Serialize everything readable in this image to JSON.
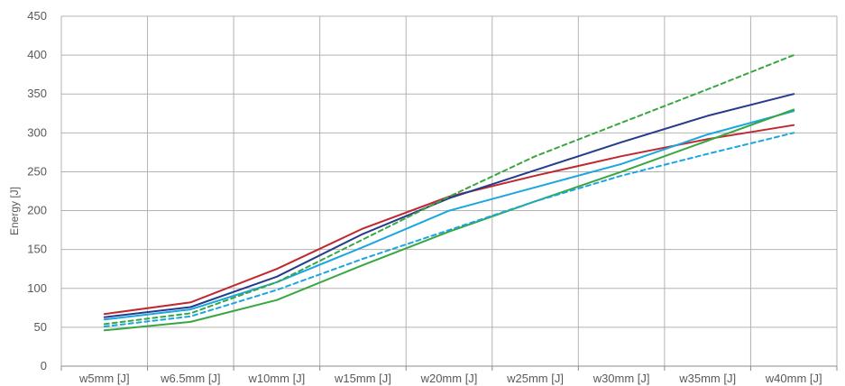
{
  "chart_data": {
    "type": "line",
    "ylabel": "Energy [J]",
    "xlabel": "",
    "title": "",
    "ylim": [
      0,
      450
    ],
    "ytick_step": 50,
    "grid": true,
    "legend": "none",
    "categories": [
      "w5mm [J]",
      "w6.5mm [J]",
      "w10mm [J]",
      "w15mm [J]",
      "w20mm [J]",
      "w25mm [J]",
      "w30mm [J]",
      "w35mm [J]",
      "w40mm [J]"
    ],
    "series": [
      {
        "color": "#c0282f",
        "dash": "solid",
        "values": [
          67,
          82,
          125,
          177,
          218,
          245,
          270,
          292,
          310
        ]
      },
      {
        "color": "#253c8c",
        "dash": "solid",
        "values": [
          63,
          76,
          115,
          170,
          216,
          252,
          288,
          322,
          350
        ]
      },
      {
        "color": "#1aa6e0",
        "dash": "solid",
        "values": [
          60,
          73,
          108,
          153,
          200,
          230,
          260,
          298,
          328
        ]
      },
      {
        "color": "#3aa642",
        "dash": "solid",
        "values": [
          46,
          57,
          85,
          130,
          173,
          212,
          250,
          290,
          330
        ]
      },
      {
        "color": "#3aa642",
        "dash": "dashed",
        "values": [
          54,
          68,
          108,
          163,
          218,
          270,
          313,
          356,
          400
        ]
      },
      {
        "color": "#1aa6e0",
        "dash": "dashed",
        "values": [
          51,
          64,
          98,
          138,
          175,
          212,
          245,
          273,
          300
        ]
      }
    ]
  }
}
